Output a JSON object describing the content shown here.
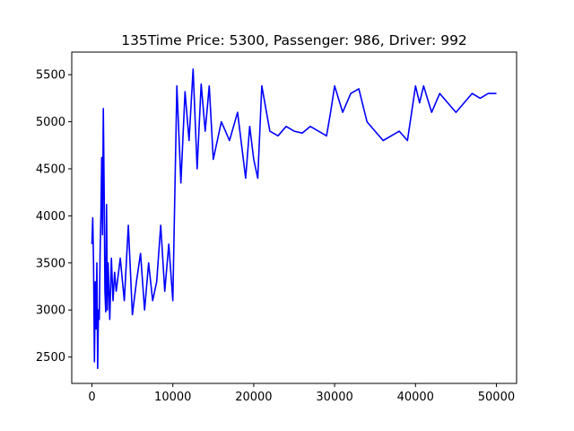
{
  "chart_data": {
    "type": "line",
    "title": "135Time Price: 5300, Passenger: 986, Driver: 992",
    "xlabel": "",
    "ylabel": "",
    "xlim": [
      -2500,
      52500
    ],
    "ylim": [
      2220,
      5740
    ],
    "x_ticks": [
      0,
      10000,
      20000,
      30000,
      40000,
      50000
    ],
    "x_tick_labels": [
      "0",
      "10000",
      "20000",
      "30000",
      "40000",
      "50000"
    ],
    "y_ticks": [
      2500,
      3000,
      3500,
      4000,
      4500,
      5000,
      5500
    ],
    "y_tick_labels": [
      "2500",
      "3000",
      "3500",
      "4000",
      "4500",
      "5000",
      "5500"
    ],
    "grid": false,
    "legend": "none",
    "line_color": "#0000ff",
    "series": [
      {
        "x": [
          0,
          100,
          200,
          300,
          400,
          500,
          600,
          700,
          800,
          900,
          1000,
          1100,
          1200,
          1300,
          1400,
          1500,
          1600,
          1700,
          1800,
          1900,
          2000,
          2200,
          2400,
          2600,
          2800,
          3000,
          3500,
          4000,
          4500,
          5000,
          5500,
          6000,
          6500,
          7000,
          7500,
          8000,
          8500,
          9000,
          9500,
          10000,
          10500,
          11000,
          11500,
          12000,
          12500,
          13000,
          13500,
          14000,
          14500,
          15000,
          16000,
          17000,
          18000,
          19000,
          19500,
          20000,
          20500,
          21000,
          22000,
          23000,
          24000,
          25000,
          26000,
          27000,
          28000,
          29000,
          29500,
          30000,
          31000,
          32000,
          33000,
          34000,
          35000,
          36000,
          37000,
          38000,
          39000,
          40000,
          40500,
          41000,
          42000,
          43000,
          44000,
          45000,
          46000,
          47000,
          48000,
          49000,
          50000
        ],
        "y": [
          3700,
          3980,
          3500,
          2450,
          3300,
          2800,
          3500,
          2380,
          3000,
          2900,
          3600,
          4000,
          4620,
          3800,
          5140,
          4300,
          3200,
          2980,
          4120,
          3000,
          3500,
          2900,
          3550,
          3100,
          3400,
          3200,
          3550,
          3100,
          3900,
          2950,
          3300,
          3600,
          3000,
          3500,
          3100,
          3300,
          3900,
          3200,
          3700,
          3100,
          5380,
          4350,
          5320,
          4800,
          5560,
          4500,
          5400,
          4900,
          5380,
          4600,
          5000,
          4800,
          5100,
          4400,
          4950,
          4600,
          4400,
          5380,
          4900,
          4850,
          4950,
          4900,
          4880,
          4950,
          4900,
          4850,
          5100,
          5380,
          5100,
          5300,
          5350,
          5000,
          4900,
          4800,
          4850,
          4900,
          4800,
          5380,
          5200,
          5380,
          5100,
          5300,
          5200,
          5100,
          5200,
          5300,
          5250,
          5300,
          5300
        ]
      }
    ]
  }
}
